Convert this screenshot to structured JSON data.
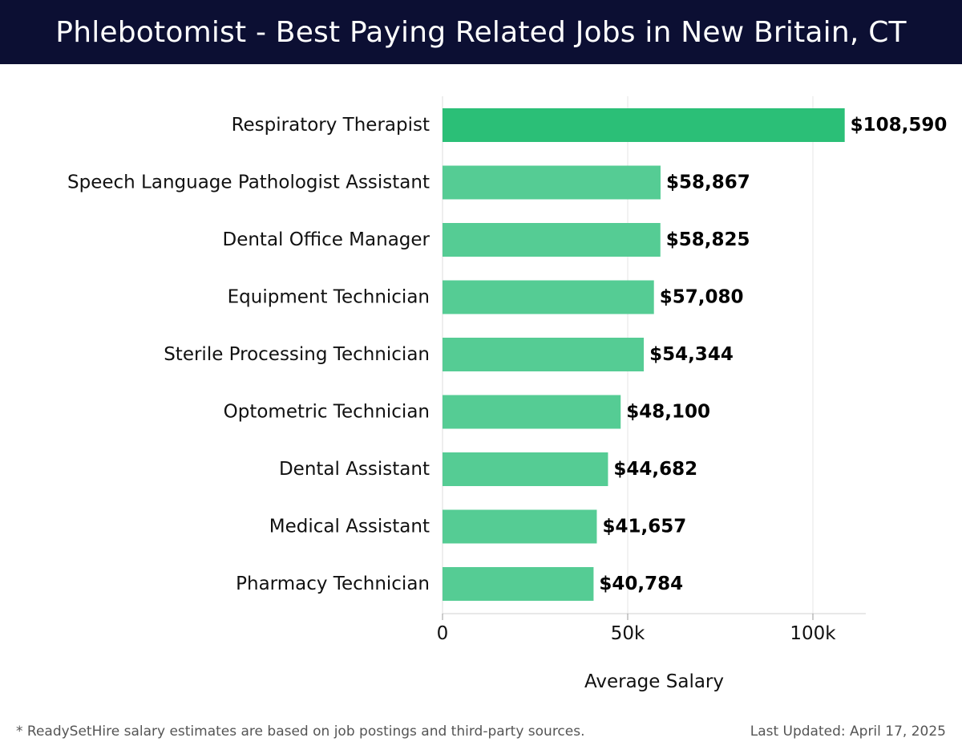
{
  "header": {
    "title": "Phlebotomist - Best Paying Related Jobs in New Britain, CT"
  },
  "chart_data": {
    "type": "bar",
    "orientation": "horizontal",
    "categories": [
      "Respiratory Therapist",
      "Speech Language Pathologist Assistant",
      "Dental Office Manager",
      "Equipment Technician",
      "Sterile Processing Technician",
      "Optometric Technician",
      "Dental Assistant",
      "Medical Assistant",
      "Pharmacy Technician"
    ],
    "values": [
      108590,
      58867,
      58825,
      57080,
      54344,
      48100,
      44682,
      41657,
      40784
    ],
    "value_labels": [
      "$108,590",
      "$58,867",
      "$58,825",
      "$57,080",
      "$54,344",
      "$48,100",
      "$44,682",
      "$41,657",
      "$40,784"
    ],
    "xlabel": "Average Salary",
    "xlim": [
      0,
      114000
    ],
    "x_ticks": [
      0,
      50000,
      100000
    ],
    "x_tick_labels": [
      "0",
      "50k",
      "100k"
    ],
    "grid": "vertical",
    "colors": {
      "highlight": "#2bbf77",
      "bar": "#55cc94"
    }
  },
  "footer": {
    "note": "* ReadySetHire salary estimates are based on job postings and third-party sources.",
    "updated": "Last Updated: April 17, 2025"
  }
}
